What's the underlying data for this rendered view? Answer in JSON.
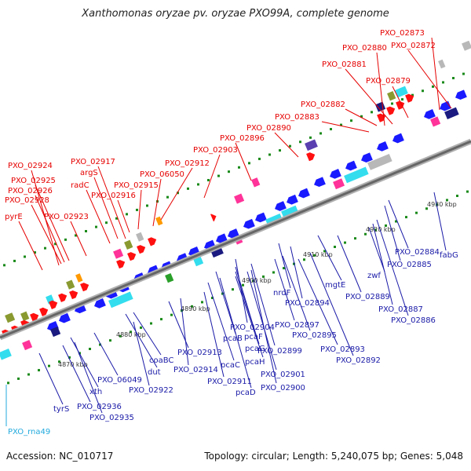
{
  "title": "Xanthomonas oryzae pv. oryzae PXO99A, complete genome",
  "footer": {
    "accession": "Accession: NC_010717",
    "summary": "Topology: circular; Length: 5,240,075 bp; Genes: 5,048"
  },
  "colors": {
    "top_label": "#e60000",
    "bottom_label": "#1a1aa8",
    "rna_label": "#22aadd",
    "forward_gene": "#ff1010",
    "reverse_gene": "#1a1aff",
    "backbone": "#888888",
    "ticks": "#1a8a1a"
  },
  "scale_labels": [
    "4870 kbp",
    "4880 kbp",
    "4890 kbp",
    "4900 kbp",
    "4910 kbp",
    "4920 kbp",
    "4930 kbp"
  ],
  "top_labels": [
    {
      "text": "PXO_02873"
    },
    {
      "text": "PXO_02872"
    },
    {
      "text": "PXO_02880"
    },
    {
      "text": "PXO_02881"
    },
    {
      "text": "PXO_02879"
    },
    {
      "text": "PXO_02882"
    },
    {
      "text": "PXO_02883"
    },
    {
      "text": "PXO_02890"
    },
    {
      "text": "PXO_02896"
    },
    {
      "text": "PXO_02903"
    },
    {
      "text": "PXO_02917"
    },
    {
      "text": "PXO_02912"
    },
    {
      "text": "argS"
    },
    {
      "text": "PXO_06050"
    },
    {
      "text": "PXO_02924"
    },
    {
      "text": "radC"
    },
    {
      "text": "PXO_02915"
    },
    {
      "text": "PXO_02925"
    },
    {
      "text": "PXO_02916"
    },
    {
      "text": "PXO_02926"
    },
    {
      "text": "PXO_02928"
    },
    {
      "text": "pyrE"
    },
    {
      "text": "PXO_02923"
    }
  ],
  "bottom_labels": [
    {
      "text": "PXO_02884"
    },
    {
      "text": "fabG"
    },
    {
      "text": "PXO_02885"
    },
    {
      "text": "mgtE"
    },
    {
      "text": "PXO_02889"
    },
    {
      "text": "zwf"
    },
    {
      "text": "PXO_02887"
    },
    {
      "text": "PXO_02886"
    },
    {
      "text": "nrdF"
    },
    {
      "text": "PXO_02894"
    },
    {
      "text": "PXO_02897"
    },
    {
      "text": "PXO_02895"
    },
    {
      "text": "PXO_02904"
    },
    {
      "text": "pcaB"
    },
    {
      "text": "pcaF"
    },
    {
      "text": "PXO_02899"
    },
    {
      "text": "pcaG"
    },
    {
      "text": "PXO_02893"
    },
    {
      "text": "PXO_02892"
    },
    {
      "text": "coaBC"
    },
    {
      "text": "PXO_02913"
    },
    {
      "text": "pcaC"
    },
    {
      "text": "pcaH"
    },
    {
      "text": "dut"
    },
    {
      "text": "PXO_02914"
    },
    {
      "text": "PXO_02901"
    },
    {
      "text": "PXO_06049"
    },
    {
      "text": "PXO_02911"
    },
    {
      "text": "PXO_02900"
    },
    {
      "text": "xth"
    },
    {
      "text": "PXO_02922"
    },
    {
      "text": "pcaD"
    },
    {
      "text": "PXO_02936"
    },
    {
      "text": "tyrS"
    },
    {
      "text": "PXO_02935"
    }
  ],
  "rna_labels": [
    {
      "text": "PXO_rna49"
    }
  ]
}
